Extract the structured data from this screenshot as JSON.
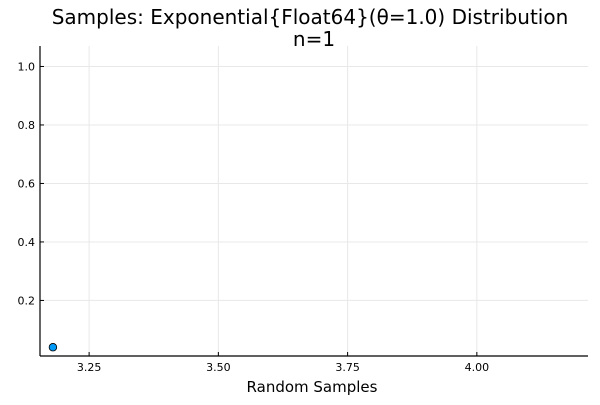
{
  "chart_data": {
    "type": "scatter",
    "title": "Samples: Exponential{Float64}(θ=1.0) Distribution",
    "subtitle": "n=1",
    "xlabel": "Random Samples",
    "ylabel": "",
    "xlim": [
      3.155,
      4.215
    ],
    "ylim": [
      0.01,
      1.07
    ],
    "xticks": [
      3.25,
      3.5,
      3.75,
      4.0
    ],
    "xtick_labels": [
      "3.25",
      "3.50",
      "3.75",
      "4.00"
    ],
    "yticks": [
      0.2,
      0.4,
      0.6,
      0.8,
      1.0
    ],
    "ytick_labels": [
      "0.2",
      "0.4",
      "0.6",
      "0.8",
      "1.0"
    ],
    "grid": true,
    "legend": false,
    "points": [
      {
        "x": 3.18,
        "y": 0.04
      }
    ],
    "marker_color": "#009af9",
    "marker_edge": "#000000"
  }
}
